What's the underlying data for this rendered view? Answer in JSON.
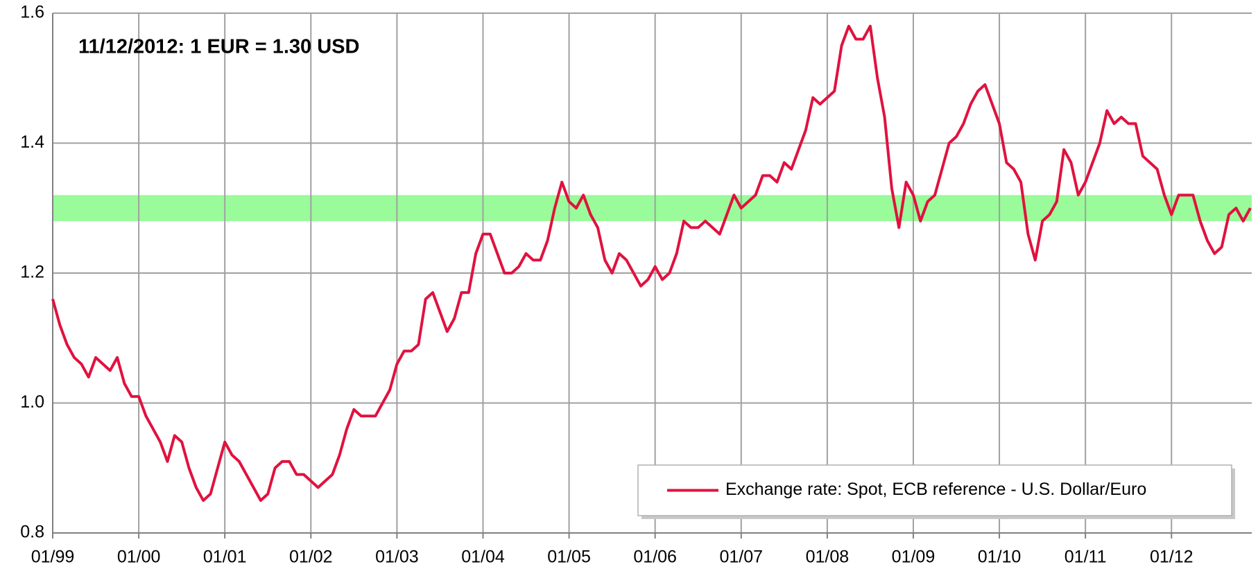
{
  "chart_data": {
    "type": "line",
    "annotation": "11/12/2012:  1 EUR  = 1.30 USD",
    "band": {
      "range": [
        1.28,
        1.32
      ],
      "color": "#99fb99"
    },
    "x": [
      "01/99",
      null,
      null,
      null,
      null,
      null,
      null,
      null,
      null,
      null,
      null,
      null,
      "01/00",
      null,
      null,
      null,
      null,
      null,
      null,
      null,
      null,
      null,
      null,
      null,
      "01/01",
      null,
      null,
      null,
      null,
      null,
      null,
      null,
      null,
      null,
      null,
      null,
      "01/02",
      null,
      null,
      null,
      null,
      null,
      null,
      null,
      null,
      null,
      null,
      null,
      "01/03",
      null,
      null,
      null,
      null,
      null,
      null,
      null,
      null,
      null,
      null,
      null,
      "01/04",
      null,
      null,
      null,
      null,
      null,
      null,
      null,
      null,
      null,
      null,
      null,
      "01/05",
      null,
      null,
      null,
      null,
      null,
      null,
      null,
      null,
      null,
      null,
      null,
      "01/06",
      null,
      null,
      null,
      null,
      null,
      null,
      null,
      null,
      null,
      null,
      null,
      "01/07",
      null,
      null,
      null,
      null,
      null,
      null,
      null,
      null,
      null,
      null,
      null,
      "01/08",
      null,
      null,
      null,
      null,
      null,
      null,
      null,
      null,
      null,
      null,
      null,
      "01/09",
      null,
      null,
      null,
      null,
      null,
      null,
      null,
      null,
      null,
      null,
      null,
      "01/10",
      null,
      null,
      null,
      null,
      null,
      null,
      null,
      null,
      null,
      null,
      null,
      "01/11",
      null,
      null,
      null,
      null,
      null,
      null,
      null,
      null,
      null,
      null,
      null,
      "01/12",
      null,
      null,
      null,
      null,
      null,
      null,
      null,
      null,
      null,
      null,
      null
    ],
    "series": [
      {
        "name": "Exchange rate: Spot, ECB reference - U.S. Dollar/Euro",
        "color": "#e0123f",
        "values": [
          1.16,
          1.12,
          1.09,
          1.07,
          1.06,
          1.04,
          1.07,
          1.06,
          1.05,
          1.07,
          1.03,
          1.01,
          1.01,
          0.98,
          0.96,
          0.94,
          0.91,
          0.95,
          0.94,
          0.9,
          0.87,
          0.85,
          0.86,
          0.9,
          0.94,
          0.92,
          0.91,
          0.89,
          0.87,
          0.85,
          0.86,
          0.9,
          0.91,
          0.91,
          0.89,
          0.89,
          0.88,
          0.87,
          0.88,
          0.89,
          0.92,
          0.96,
          0.99,
          0.98,
          0.98,
          0.98,
          1.0,
          1.02,
          1.06,
          1.08,
          1.08,
          1.09,
          1.16,
          1.17,
          1.14,
          1.11,
          1.13,
          1.17,
          1.17,
          1.23,
          1.26,
          1.26,
          1.23,
          1.2,
          1.2,
          1.21,
          1.23,
          1.22,
          1.22,
          1.25,
          1.3,
          1.34,
          1.31,
          1.3,
          1.32,
          1.29,
          1.27,
          1.22,
          1.2,
          1.23,
          1.22,
          1.2,
          1.18,
          1.19,
          1.21,
          1.19,
          1.2,
          1.23,
          1.28,
          1.27,
          1.27,
          1.28,
          1.27,
          1.26,
          1.29,
          1.32,
          1.3,
          1.31,
          1.32,
          1.35,
          1.35,
          1.34,
          1.37,
          1.36,
          1.39,
          1.42,
          1.47,
          1.46,
          1.47,
          1.48,
          1.55,
          1.58,
          1.56,
          1.56,
          1.58,
          1.5,
          1.44,
          1.33,
          1.27,
          1.34,
          1.32,
          1.28,
          1.31,
          1.32,
          1.36,
          1.4,
          1.41,
          1.43,
          1.46,
          1.48,
          1.49,
          1.46,
          1.43,
          1.37,
          1.36,
          1.34,
          1.26,
          1.22,
          1.28,
          1.29,
          1.31,
          1.39,
          1.37,
          1.32,
          1.34,
          1.37,
          1.4,
          1.45,
          1.43,
          1.44,
          1.43,
          1.43,
          1.38,
          1.37,
          1.36,
          1.32,
          1.29,
          1.32,
          1.32,
          1.32,
          1.28,
          1.25,
          1.23,
          1.24,
          1.29,
          1.3,
          1.28,
          1.3
        ]
      }
    ],
    "ylim": [
      0.8,
      1.6
    ],
    "yticks": [
      0.8,
      {
        "value": 1,
        "label": "1.0"
      },
      1.2,
      1.4,
      1.6
    ],
    "grid": true,
    "legend": "lower right"
  }
}
